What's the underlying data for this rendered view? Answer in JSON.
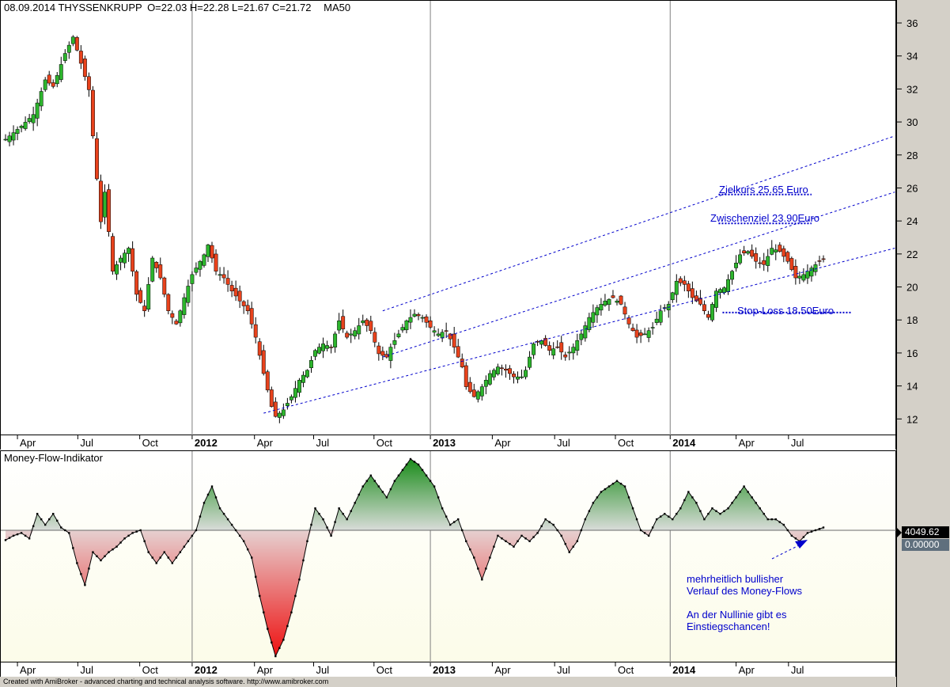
{
  "price_header": {
    "date": "08.09.2014",
    "symbol": "THYSSENKRUPP",
    "ohlc": "O=22.03  H=22.28  L=21.67  C=21.72",
    "indicator": "MA50"
  },
  "mfi_header": "Money-Flow-Indikator",
  "footer": "Created with AmiBroker - advanced charting and technical analysis software. http://www.amibroker.com",
  "mfi_value_label": "4049.62",
  "mfi_zero_label": "0.00000",
  "annotations": {
    "target": "Zielkurs 25.65 Euro",
    "intermediate": "Zwischenziel 23.90Euro",
    "stoploss": "Stop-Loss 18.50Euro",
    "comment_line1": "mehrheitlich bullisher",
    "comment_line2": "Verlauf des Money-Flows",
    "comment_line3": "An der Nullinie gibt es",
    "comment_line4": "Einstiegschancen!"
  },
  "colors": {
    "up": "#2db52d",
    "down": "#e8421c",
    "annotation": "#0000cc",
    "mfi_pos": "#1a8c1a",
    "mfi_neg": "#ee1111"
  },
  "chart_data": [
    {
      "type": "candlestick",
      "title": "THYSSENKRUPP",
      "x_tick_labels": [
        "Apr",
        "Jul",
        "Oct",
        "2012",
        "Apr",
        "Jul",
        "Oct",
        "2013",
        "Apr",
        "Jul",
        "Oct",
        "2014",
        "Apr",
        "Jul"
      ],
      "ylim": [
        11.2,
        37.2
      ],
      "y_ticks": [
        12,
        14,
        16,
        18,
        20,
        22,
        24,
        26,
        28,
        30,
        32,
        34,
        36
      ],
      "anchors": [
        [
          0,
          29.0
        ],
        [
          4,
          29.8
        ],
        [
          7,
          30.5
        ],
        [
          10,
          32.6
        ],
        [
          12,
          32.2
        ],
        [
          15,
          34.2
        ],
        [
          17,
          35.2
        ],
        [
          19,
          33.6
        ],
        [
          21,
          32.0
        ],
        [
          22,
          29.2
        ],
        [
          24,
          24.0
        ],
        [
          25,
          25.8
        ],
        [
          27,
          21.0
        ],
        [
          29,
          21.8
        ],
        [
          31,
          22.4
        ],
        [
          33,
          19.6
        ],
        [
          35,
          18.6
        ],
        [
          37,
          21.8
        ],
        [
          39,
          20.6
        ],
        [
          41,
          18.6
        ],
        [
          43,
          17.8
        ],
        [
          45,
          19.4
        ],
        [
          47,
          20.8
        ],
        [
          50,
          22.0
        ],
        [
          51,
          22.6
        ],
        [
          53,
          21.0
        ],
        [
          55,
          20.6
        ],
        [
          57,
          19.8
        ],
        [
          59,
          19.2
        ],
        [
          61,
          18.6
        ],
        [
          63,
          17.0
        ],
        [
          65,
          14.8
        ],
        [
          67,
          12.8
        ],
        [
          68,
          12.2
        ],
        [
          70,
          12.6
        ],
        [
          72,
          13.4
        ],
        [
          74,
          14.4
        ],
        [
          76,
          15.0
        ],
        [
          78,
          16.2
        ],
        [
          80,
          16.6
        ],
        [
          82,
          16.4
        ],
        [
          84,
          18.0
        ],
        [
          86,
          17.0
        ],
        [
          88,
          17.4
        ],
        [
          90,
          18.0
        ],
        [
          92,
          17.4
        ],
        [
          94,
          16.0
        ],
        [
          96,
          15.8
        ],
        [
          97,
          16.4
        ],
        [
          99,
          17.2
        ],
        [
          101,
          18.0
        ],
        [
          103,
          18.4
        ],
        [
          105,
          18.2
        ],
        [
          107,
          17.6
        ],
        [
          109,
          17.2
        ],
        [
          111,
          17.4
        ],
        [
          113,
          16.4
        ],
        [
          115,
          15.2
        ],
        [
          116,
          14.0
        ],
        [
          118,
          13.4
        ],
        [
          120,
          14.0
        ],
        [
          122,
          14.8
        ],
        [
          124,
          15.2
        ],
        [
          126,
          15.0
        ],
        [
          128,
          14.6
        ],
        [
          130,
          14.6
        ],
        [
          131,
          15.0
        ],
        [
          133,
          16.6
        ],
        [
          135,
          16.8
        ],
        [
          137,
          16.2
        ],
        [
          139,
          16.4
        ],
        [
          141,
          15.8
        ],
        [
          143,
          16.4
        ],
        [
          145,
          17.2
        ],
        [
          147,
          18.2
        ],
        [
          149,
          18.8
        ],
        [
          151,
          19.2
        ],
        [
          153,
          19.4
        ],
        [
          155,
          19.0
        ],
        [
          157,
          17.8
        ],
        [
          159,
          17.0
        ],
        [
          161,
          17.2
        ],
        [
          163,
          17.6
        ],
        [
          165,
          18.6
        ],
        [
          167,
          19.0
        ],
        [
          169,
          20.4
        ],
        [
          171,
          20.2
        ],
        [
          173,
          19.4
        ],
        [
          175,
          19.0
        ],
        [
          177,
          18.2
        ],
        [
          179,
          19.8
        ],
        [
          181,
          20.0
        ],
        [
          183,
          21.0
        ],
        [
          185,
          22.0
        ],
        [
          187,
          22.2
        ],
        [
          189,
          21.6
        ],
        [
          191,
          21.4
        ],
        [
          193,
          22.4
        ],
        [
          195,
          22.2
        ],
        [
          197,
          21.6
        ],
        [
          199,
          20.6
        ],
        [
          201,
          20.8
        ],
        [
          203,
          21.2
        ],
        [
          205,
          21.6
        ],
        [
          206,
          21.72
        ]
      ],
      "trend_lines": [
        {
          "from": [
            65,
            12.4
          ],
          "to": [
            220,
            22.4
          ]
        },
        {
          "from": [
            95,
            15.8
          ],
          "to": [
            220,
            25.8
          ]
        },
        {
          "from": [
            95,
            18.6
          ],
          "to": [
            220,
            29.2
          ]
        }
      ],
      "target_levels": [
        25.65,
        23.9,
        18.5
      ]
    },
    {
      "type": "area",
      "title": "Money-Flow-Indikator",
      "x_tick_labels": [
        "Apr",
        "Jul",
        "Oct",
        "2012",
        "Apr",
        "Jul",
        "Oct",
        "2013",
        "Apr",
        "Jul",
        "Oct",
        "2014",
        "Apr",
        "Jul"
      ],
      "ylim": [
        -240,
        130
      ],
      "anchors": [
        [
          0,
          -18
        ],
        [
          2,
          -10
        ],
        [
          4,
          -5
        ],
        [
          6,
          -15
        ],
        [
          8,
          30
        ],
        [
          10,
          10
        ],
        [
          12,
          30
        ],
        [
          14,
          5
        ],
        [
          16,
          -5
        ],
        [
          18,
          -60
        ],
        [
          20,
          -100
        ],
        [
          22,
          -40
        ],
        [
          24,
          -55
        ],
        [
          26,
          -40
        ],
        [
          28,
          -30
        ],
        [
          30,
          -15
        ],
        [
          32,
          -5
        ],
        [
          34,
          0
        ],
        [
          36,
          -40
        ],
        [
          38,
          -60
        ],
        [
          40,
          -40
        ],
        [
          42,
          -60
        ],
        [
          44,
          -40
        ],
        [
          46,
          -20
        ],
        [
          48,
          0
        ],
        [
          50,
          50
        ],
        [
          52,
          80
        ],
        [
          54,
          40
        ],
        [
          56,
          20
        ],
        [
          58,
          0
        ],
        [
          60,
          -20
        ],
        [
          62,
          -50
        ],
        [
          64,
          -120
        ],
        [
          66,
          -180
        ],
        [
          68,
          -230
        ],
        [
          70,
          -200
        ],
        [
          72,
          -150
        ],
        [
          74,
          -90
        ],
        [
          76,
          -20
        ],
        [
          78,
          40
        ],
        [
          80,
          20
        ],
        [
          82,
          -10
        ],
        [
          84,
          40
        ],
        [
          86,
          20
        ],
        [
          88,
          50
        ],
        [
          90,
          80
        ],
        [
          92,
          100
        ],
        [
          94,
          80
        ],
        [
          96,
          60
        ],
        [
          98,
          90
        ],
        [
          100,
          110
        ],
        [
          102,
          130
        ],
        [
          104,
          120
        ],
        [
          106,
          100
        ],
        [
          108,
          80
        ],
        [
          110,
          40
        ],
        [
          112,
          10
        ],
        [
          114,
          20
        ],
        [
          116,
          -20
        ],
        [
          118,
          -50
        ],
        [
          120,
          -90
        ],
        [
          122,
          -50
        ],
        [
          124,
          -10
        ],
        [
          126,
          -20
        ],
        [
          128,
          -30
        ],
        [
          130,
          -10
        ],
        [
          132,
          -20
        ],
        [
          134,
          -5
        ],
        [
          136,
          20
        ],
        [
          138,
          10
        ],
        [
          140,
          -10
        ],
        [
          142,
          -40
        ],
        [
          144,
          -20
        ],
        [
          146,
          20
        ],
        [
          148,
          50
        ],
        [
          150,
          70
        ],
        [
          152,
          80
        ],
        [
          154,
          90
        ],
        [
          156,
          80
        ],
        [
          158,
          40
        ],
        [
          160,
          0
        ],
        [
          162,
          -10
        ],
        [
          164,
          20
        ],
        [
          166,
          30
        ],
        [
          168,
          20
        ],
        [
          170,
          40
        ],
        [
          172,
          70
        ],
        [
          174,
          50
        ],
        [
          176,
          20
        ],
        [
          178,
          40
        ],
        [
          180,
          30
        ],
        [
          182,
          40
        ],
        [
          184,
          60
        ],
        [
          186,
          80
        ],
        [
          188,
          60
        ],
        [
          190,
          40
        ],
        [
          192,
          20
        ],
        [
          194,
          20
        ],
        [
          196,
          10
        ],
        [
          198,
          -10
        ],
        [
          200,
          -20
        ],
        [
          202,
          -5
        ],
        [
          204,
          0
        ],
        [
          206,
          5
        ]
      ]
    }
  ]
}
